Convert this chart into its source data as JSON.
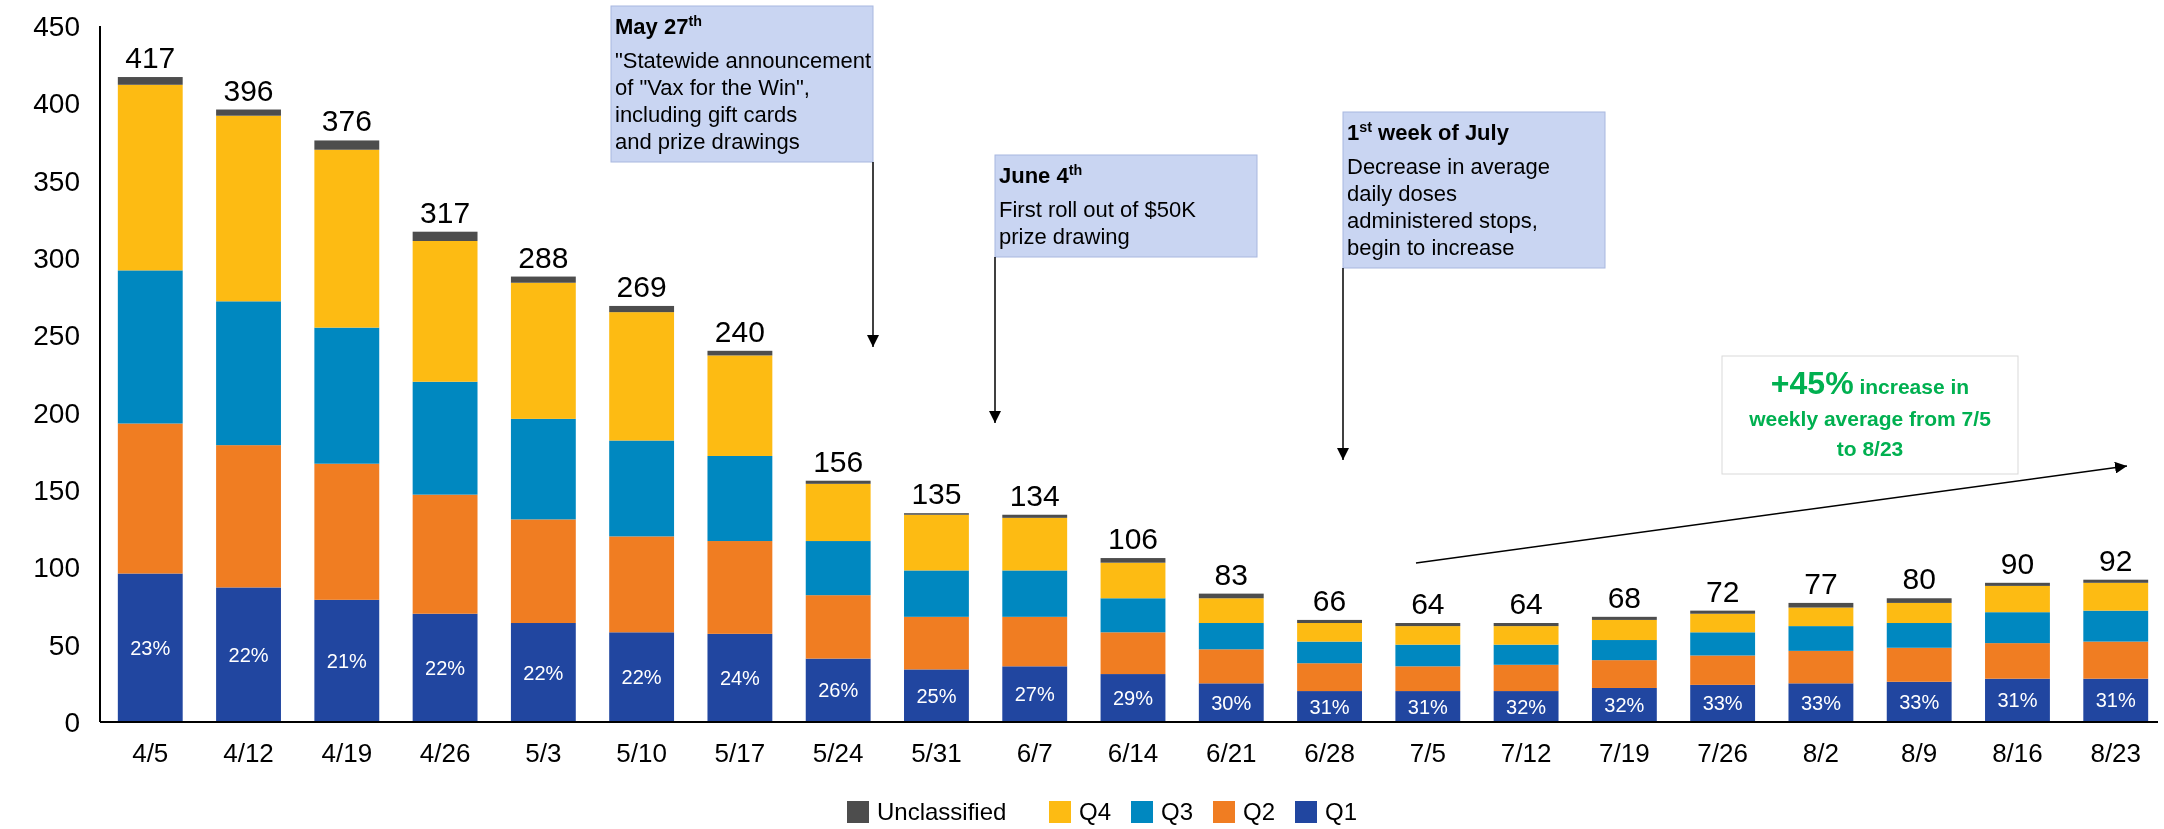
{
  "chart_data": {
    "type": "bar",
    "stacked": true,
    "categories": [
      "4/5",
      "4/12",
      "4/19",
      "4/26",
      "5/3",
      "5/10",
      "5/17",
      "5/24",
      "5/31",
      "6/7",
      "6/14",
      "6/21",
      "6/28",
      "7/5",
      "7/12",
      "7/19",
      "7/26",
      "8/2",
      "8/9",
      "8/16",
      "8/23"
    ],
    "series": [
      {
        "name": "Q1",
        "color": "#2146a0",
        "values": [
          96,
          87,
          79,
          70,
          64,
          58,
          57,
          41,
          34,
          36,
          31,
          25,
          20,
          20,
          20,
          22,
          24,
          25,
          26,
          28,
          28
        ]
      },
      {
        "name": "Q2",
        "color": "#f07d22",
        "values": [
          97,
          92,
          88,
          77,
          67,
          62,
          60,
          41,
          34,
          32,
          27,
          22,
          18,
          16,
          17,
          18,
          19,
          21,
          22,
          23,
          24
        ]
      },
      {
        "name": "Q3",
        "color": "#0088c0",
        "values": [
          99,
          93,
          88,
          73,
          65,
          62,
          55,
          35,
          30,
          30,
          22,
          17,
          14,
          14,
          13,
          13,
          15,
          16,
          16,
          20,
          20
        ]
      },
      {
        "name": "Q4",
        "color": "#fdbb13",
        "values": [
          120,
          120,
          115,
          91,
          88,
          83,
          65,
          37,
          36,
          34,
          23,
          16,
          12,
          12,
          12,
          13,
          12,
          12,
          13,
          17,
          18
        ]
      },
      {
        "name": "Unclassified",
        "color": "#4d4d4d",
        "values": [
          5,
          4,
          6,
          6,
          4,
          4,
          3,
          2,
          1,
          2,
          3,
          3,
          2,
          2,
          2,
          2,
          2,
          3,
          3,
          2,
          2
        ]
      }
    ],
    "totals": [
      "417",
      "396",
      "376",
      "317",
      "288",
      "269",
      "240",
      "156",
      "135",
      "134",
      "106",
      "83",
      "66",
      "64",
      "64",
      "68",
      "72",
      "77",
      "80",
      "90",
      "92"
    ],
    "ylim": [
      0,
      450
    ],
    "yticks": [
      0,
      50,
      100,
      150,
      200,
      250,
      300,
      350,
      400,
      450
    ],
    "legend": "bottom",
    "annotations": [
      "May 27$^{th}$",
      "\"Statewide announcement of \"Vax for the Win\", including gift cards and prize drawings",
      "June 4$^{th}$",
      "First roll out of $50K prize drawing",
      "1$^{st}$ week of July",
      "Decrease in average daily doses administered stops, begin to increase",
      "+45%",
      "increase in weekly average from 7/5 to 8/23",
      "23%",
      "22%",
      "21%",
      "22%",
      "22%",
      "22%",
      "24%",
      "26%",
      "25%",
      "27%",
      "29%",
      "30%",
      "31%",
      "31%",
      "32%",
      "32%",
      "33%",
      "33%",
      "33%",
      "31%",
      "31%"
    ]
  }
}
